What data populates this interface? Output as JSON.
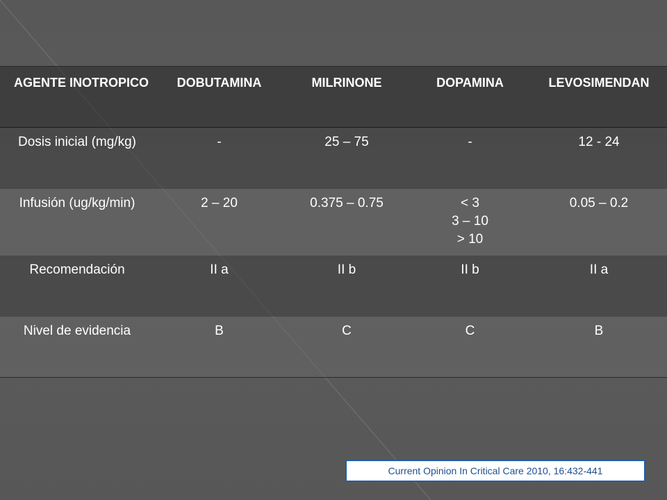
{
  "table": {
    "headers": [
      "AGENTE INOTROPICO",
      "DOBUTAMINA",
      "MILRINONE",
      "DOPAMINA",
      "LEVOSIMENDAN"
    ],
    "rows": [
      {
        "label": "Dosis inicial (mg/kg)",
        "values": [
          "-",
          "25 – 75",
          "-",
          "12 - 24"
        ]
      },
      {
        "label": "Infusión (ug/kg/min)",
        "values": [
          "2 – 20",
          "0.375 – 0.75",
          "< 3\n3 – 10\n> 10",
          "0.05 – 0.2"
        ]
      },
      {
        "label": "Recomendación",
        "values": [
          "II a",
          "II b",
          "II b",
          "II a"
        ]
      },
      {
        "label": "Nivel de evidencia",
        "values": [
          "B",
          "C",
          "C",
          "B"
        ]
      }
    ]
  },
  "citation": "Current Opinion In Critical Care 2010, 16:432-441",
  "colors": {
    "background": "#5a5a5a",
    "text": "#ffffff",
    "citation_border": "#1f5fa8",
    "citation_text": "#1f4f8f"
  }
}
